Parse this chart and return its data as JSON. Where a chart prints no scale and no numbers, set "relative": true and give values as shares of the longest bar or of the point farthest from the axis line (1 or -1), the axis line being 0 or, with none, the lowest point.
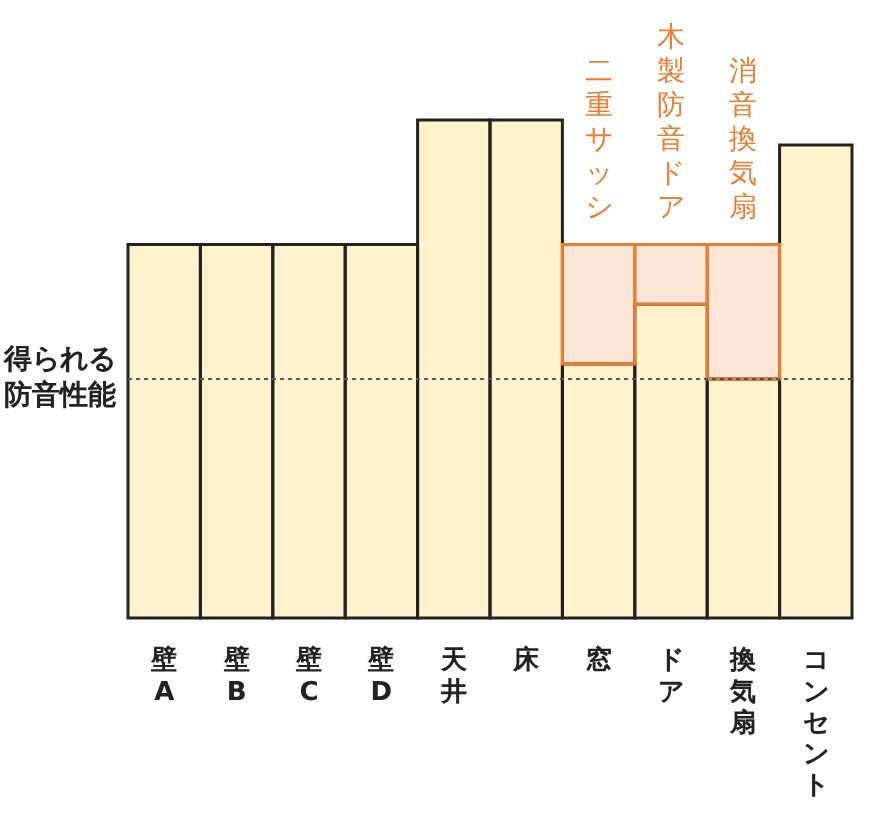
{
  "chart_data": {
    "type": "bar",
    "relative": true,
    "categories": [
      "壁A",
      "壁B",
      "壁C",
      "壁D",
      "天井",
      "床",
      "窓",
      "ドア",
      "換気扇",
      "コンセント"
    ],
    "series": [
      {
        "color": "#fff2cc",
        "values": [
          0.75,
          0.75,
          0.75,
          0.75,
          1,
          1,
          0.51,
          0.63,
          0.48,
          0.95
        ]
      },
      {
        "color": "#fbe5d6",
        "values": [
          null,
          null,
          null,
          null,
          null,
          null,
          0.24,
          0.12,
          0.27,
          null
        ]
      }
    ],
    "stacked": true,
    "annotations": [
      {
        "text": "二重サッシ",
        "x": "窓",
        "y": 0.75
      },
      {
        "text": "木製防音ドア",
        "x": "ドア",
        "y": 0.75
      },
      {
        "text": "消音換気扇",
        "x": "換気扇",
        "y": 0.75
      }
    ],
    "ref_lines": [
      {
        "axis": "y",
        "value": 0.48,
        "label": "得られる防音性能",
        "line_style": "dotted"
      }
    ],
    "grid": false,
    "legend": false
  }
}
